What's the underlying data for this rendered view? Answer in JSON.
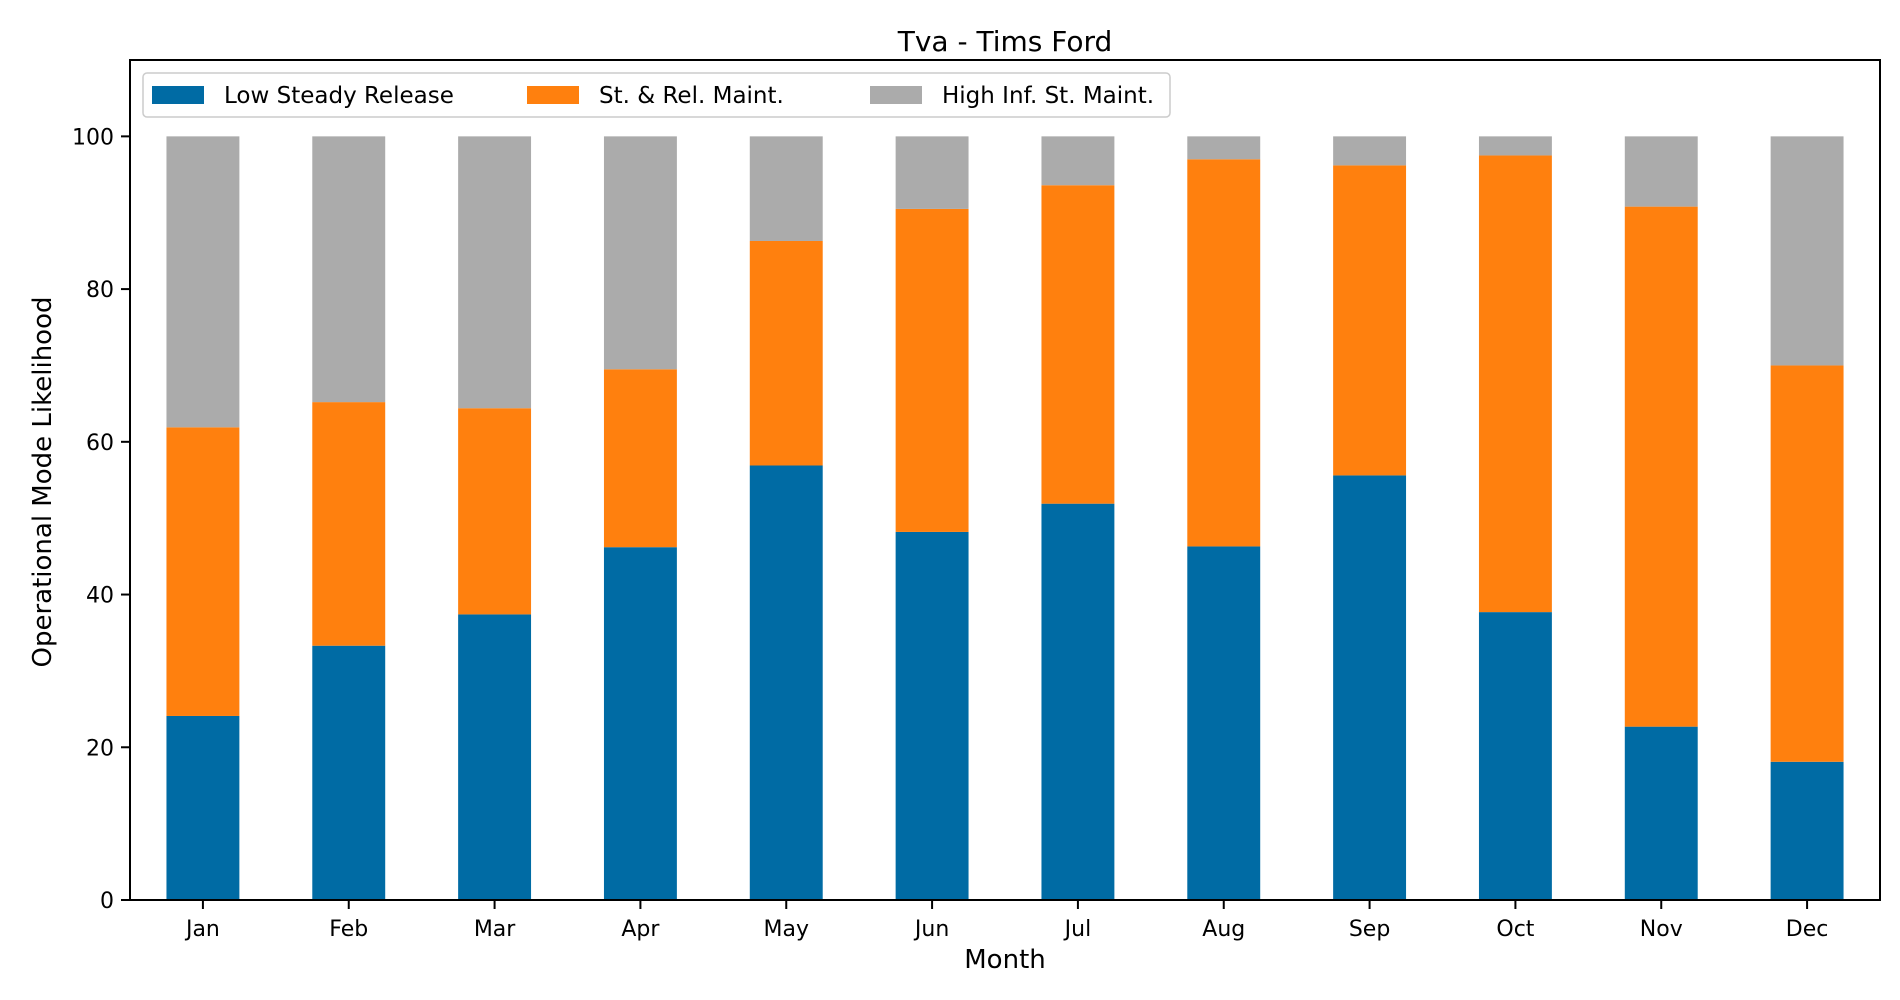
{
  "chart_data": {
    "type": "bar",
    "stacked": true,
    "title": "Tva - Tims Ford",
    "xlabel": "Month",
    "ylabel": "Operational Mode Likelihood",
    "ylim": [
      0,
      110
    ],
    "yticks": [
      0,
      20,
      40,
      60,
      80,
      100
    ],
    "grid": false,
    "legend_position": "top-left",
    "categories": [
      "Jan",
      "Feb",
      "Mar",
      "Apr",
      "May",
      "Jun",
      "Jul",
      "Aug",
      "Sep",
      "Oct",
      "Nov",
      "Dec"
    ],
    "series": [
      {
        "name": "Low Steady Release",
        "color": "#006BA4",
        "values": [
          24.1,
          33.3,
          37.4,
          46.2,
          56.9,
          48.2,
          51.9,
          46.3,
          55.6,
          37.7,
          22.7,
          18.1
        ]
      },
      {
        "name": "St. & Rel. Maint.",
        "color": "#FF800E",
        "values": [
          37.8,
          31.9,
          27.0,
          23.3,
          29.4,
          42.3,
          41.7,
          50.7,
          40.6,
          59.8,
          68.1,
          51.9
        ]
      },
      {
        "name": "High Inf. St. Maint.",
        "color": "#ABABAB",
        "values": [
          38.1,
          34.8,
          35.6,
          30.5,
          13.7,
          9.5,
          6.4,
          3.0,
          3.8,
          2.5,
          9.2,
          30.0
        ]
      }
    ]
  }
}
